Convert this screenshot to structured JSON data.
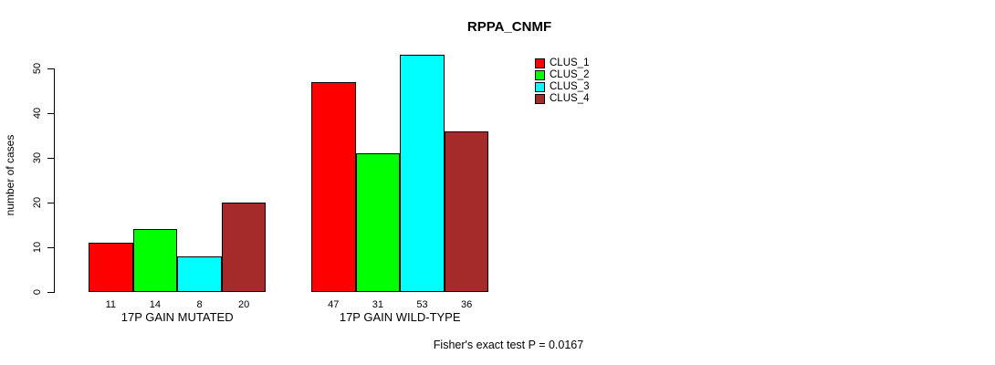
{
  "chart_data": {
    "type": "bar",
    "title": "RPPA_CNMF",
    "xlabel": "",
    "ylabel": "number of cases",
    "groups": [
      {
        "label": "17P GAIN MUTATED",
        "values": [
          11,
          14,
          8,
          20
        ]
      },
      {
        "label": "17P GAIN WILD-TYPE",
        "values": [
          47,
          31,
          53,
          36
        ]
      }
    ],
    "series": [
      {
        "name": "CLUS_1",
        "color": "#FF0000"
      },
      {
        "name": "CLUS_2",
        "color": "#00FF00"
      },
      {
        "name": "CLUS_3",
        "color": "#00FFFF"
      },
      {
        "name": "CLUS_4",
        "color": "#A52A2A"
      }
    ],
    "yticks": [
      0,
      10,
      20,
      30,
      40,
      50
    ],
    "ylim": [
      0,
      53
    ],
    "grid": false,
    "legend_position": "top-right",
    "bar_value_labels_shown": true,
    "annotation": "Fisher's exact test P = 0.0167"
  }
}
